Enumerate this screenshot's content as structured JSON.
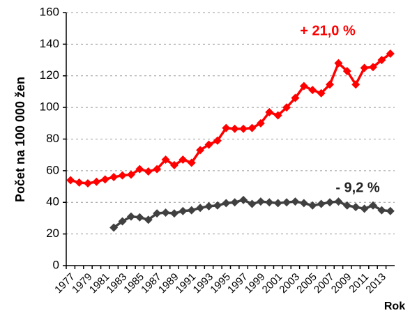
{
  "chart_data": {
    "type": "line",
    "ylabel": "Počet na 100 000 žen",
    "xlabel": "Rok",
    "categories": [
      "1977",
      null,
      "1979",
      null,
      "1981",
      null,
      "1983",
      null,
      "1985",
      null,
      "1987",
      null,
      "1989",
      null,
      "1991",
      null,
      "1993",
      null,
      "1995",
      null,
      "1997",
      null,
      "1999",
      null,
      "2001",
      null,
      "2003",
      null,
      "2005",
      null,
      "2007",
      null,
      "2009",
      null,
      "2011",
      null,
      "2013",
      null
    ],
    "series": [
      {
        "color": "#ff0000",
        "values": [
          54,
          52.5,
          52,
          53,
          54.5,
          56,
          57,
          57.5,
          61,
          59.5,
          61,
          67,
          63.5,
          67,
          65,
          73,
          76.5,
          79,
          87,
          86.5,
          86.5,
          87,
          90,
          97,
          95,
          100,
          106,
          113.5,
          111,
          109,
          114.5,
          128,
          123,
          114.5,
          125,
          125.5,
          130,
          134
        ]
      },
      {
        "color": "#404040",
        "values": [
          null,
          null,
          null,
          null,
          null,
          24,
          28,
          31,
          30.5,
          29,
          33,
          33.5,
          33,
          34.5,
          35,
          36.5,
          37.5,
          38,
          39.5,
          40,
          41.5,
          39,
          40.5,
          40,
          39.5,
          40,
          40.5,
          39.5,
          38,
          39,
          40,
          40.5,
          38,
          37,
          36,
          38,
          35,
          34.5
        ]
      }
    ],
    "annotations": [
      {
        "text": "+ 21,0 %",
        "color": "#ff0000"
      },
      {
        "text": "- 9,2 %",
        "color": "#222222"
      }
    ],
    "ylim": [
      0,
      160
    ],
    "yticks": [
      0,
      20,
      40,
      60,
      80,
      100,
      120,
      140,
      160
    ],
    "grid": true
  }
}
